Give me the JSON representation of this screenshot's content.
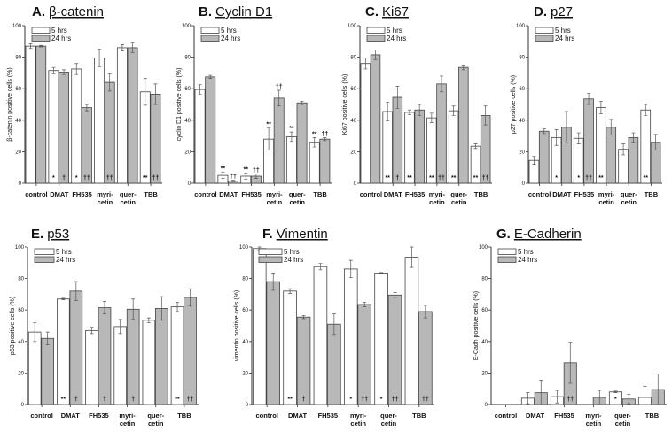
{
  "colors": {
    "five_hrs": "#ffffff",
    "twentyfour_hrs": "#b8b8b8",
    "axis": "#333333"
  },
  "chart_data": [
    {
      "panel": "A.",
      "title": "β-catenin",
      "type": "bar",
      "ylabel": "β-catenin positive cells (%)",
      "ylim": [
        0,
        100
      ],
      "yticks": [
        "0",
        "20",
        "40",
        "60",
        "80",
        "100"
      ],
      "categories": [
        "control",
        "DMAT",
        "FH535",
        "myri-\ncetin",
        "quer-\ncetin",
        "TBB"
      ],
      "series": [
        {
          "name": "5 hrs",
          "values": [
            87,
            71.5,
            72.5,
            79.5,
            86,
            58
          ],
          "errors": [
            1.5,
            2,
            3.5,
            5.5,
            2,
            8.5
          ],
          "marks": [
            "",
            "*",
            "*",
            "",
            "",
            "**"
          ]
        },
        {
          "name": "24 hrs",
          "values": [
            87,
            70.5,
            48,
            64,
            86,
            56.5
          ],
          "errors": [
            0.5,
            1.5,
            2,
            5.5,
            3,
            6.5
          ],
          "marks": [
            "",
            "†",
            "††",
            "††",
            "",
            "††"
          ]
        }
      ],
      "marks_position": "bottom"
    },
    {
      "panel": "B.",
      "title": "Cyclin D1",
      "type": "bar",
      "ylabel": "cyclin D1 positive cells (%)",
      "ylim": [
        0,
        100
      ],
      "yticks": [
        "0",
        "20",
        "40",
        "60",
        "80",
        "100"
      ],
      "categories": [
        "control",
        "DMAT",
        "FH535",
        "myri-\ncetin",
        "quer-\ncetin",
        "TBB"
      ],
      "series": [
        {
          "name": "5 hrs",
          "values": [
            59.5,
            5,
            4.5,
            28,
            29.5,
            26
          ],
          "errors": [
            3,
            2,
            2,
            7,
            3,
            3
          ],
          "marks": [
            "",
            "**",
            "**",
            "**",
            "**",
            "**"
          ]
        },
        {
          "name": "24 hrs",
          "values": [
            67.5,
            1.5,
            4.5,
            54,
            51,
            28
          ],
          "errors": [
            1,
            0.5,
            1.5,
            5,
            1,
            1
          ],
          "marks": [
            "",
            "††",
            "††",
            "††",
            "",
            "††"
          ]
        }
      ],
      "marks_position": "top"
    },
    {
      "panel": "C.",
      "title": "Ki67",
      "type": "bar",
      "ylabel": "Ki67 positive cells (%)",
      "ylim": [
        0,
        100
      ],
      "yticks": [
        "0",
        "20",
        "40",
        "60",
        "80",
        "100"
      ],
      "categories": [
        "control",
        "DMAT",
        "FH535",
        "myri-\ncetin",
        "quer-\ncetin",
        "TBB"
      ],
      "series": [
        {
          "name": "5 hrs",
          "values": [
            76,
            45.5,
            45,
            41.5,
            46,
            23.5
          ],
          "errors": [
            3.5,
            6,
            1.5,
            3,
            3,
            1.5
          ],
          "marks": [
            "",
            "**",
            "**",
            "**",
            "**",
            "**"
          ]
        },
        {
          "name": "24 hrs",
          "values": [
            81.5,
            54.5,
            46.5,
            63,
            73.5,
            43
          ],
          "errors": [
            3,
            7,
            3.5,
            5,
            1.5,
            6
          ],
          "marks": [
            "",
            "†",
            "",
            "††",
            "",
            "††"
          ]
        }
      ],
      "marks_position": "bottom"
    },
    {
      "panel": "D.",
      "title": "p27",
      "type": "bar",
      "ylabel": "p27 positive cells (%)",
      "ylim": [
        0,
        100
      ],
      "yticks": [
        "0",
        "20",
        "40",
        "60",
        "80",
        "100"
      ],
      "categories": [
        "control",
        "DMAT",
        "FH535",
        "myri-\ncetin",
        "quer-\ncetin",
        "TBB"
      ],
      "series": [
        {
          "name": "5 hrs",
          "values": [
            14.5,
            29,
            28.5,
            48,
            21.5,
            46.5
          ],
          "errors": [
            2.5,
            5,
            3.5,
            4,
            3.5,
            3.5
          ],
          "marks": [
            "",
            "*",
            "*",
            "**",
            "",
            "**"
          ]
        },
        {
          "name": "24 hrs",
          "values": [
            33,
            35.5,
            53.5,
            35.5,
            29,
            26
          ],
          "errors": [
            1.5,
            10,
            3.5,
            5,
            3,
            5
          ],
          "marks": [
            "",
            "",
            "††",
            "",
            "",
            ""
          ]
        }
      ],
      "marks_position": "bottom"
    },
    {
      "panel": "E.",
      "title": "p53",
      "type": "bar",
      "ylabel": "p53 positive cells (%)",
      "ylim": [
        0,
        100
      ],
      "yticks": [
        "0",
        "20",
        "40",
        "60",
        "80",
        "100"
      ],
      "categories": [
        "control",
        "DMAT",
        "FH535",
        "myri-\ncetin",
        "quer-\ncetin",
        "TBB"
      ],
      "series": [
        {
          "name": "5 hrs",
          "values": [
            46,
            67,
            47,
            49.5,
            53.5,
            62
          ],
          "errors": [
            6,
            0.5,
            2,
            4.5,
            1.5,
            3
          ],
          "marks": [
            "",
            "**",
            "",
            "",
            "",
            "**"
          ]
        },
        {
          "name": "24 hrs",
          "values": [
            42,
            72,
            61.5,
            60.5,
            61,
            68
          ],
          "errors": [
            4,
            6,
            4,
            6.5,
            7.5,
            5.5
          ],
          "marks": [
            "",
            "†",
            "†",
            "†",
            "",
            "††"
          ]
        }
      ],
      "marks_position": "bottom"
    },
    {
      "panel": "F.",
      "title": "Vimentin",
      "type": "bar",
      "ylabel": "vimentin positive cells (%)",
      "ylim": [
        0,
        100
      ],
      "yticks": [
        "0",
        "20",
        "40",
        "60",
        "80",
        "100"
      ],
      "categories": [
        "control",
        "DMAT",
        "FH535",
        "myri-\ncetin",
        "quer-\ncetin",
        "TBB"
      ],
      "series": [
        {
          "name": "5 hrs",
          "values": [
            99,
            72,
            87.5,
            86,
            83.5,
            93.5
          ],
          "errors": [
            1,
            1.5,
            2,
            5.5,
            0.3,
            6.5
          ],
          "marks": [
            "",
            "**",
            "",
            "*",
            "*",
            ""
          ]
        },
        {
          "name": "24 hrs",
          "values": [
            78,
            55.5,
            51,
            63.5,
            69.5,
            59
          ],
          "errors": [
            5.5,
            1,
            6.5,
            1.5,
            1.5,
            4
          ],
          "marks": [
            "",
            "†",
            "",
            "††",
            "††",
            "††"
          ]
        }
      ],
      "marks_position": "bottom"
    },
    {
      "panel": "G.",
      "title": "E-Cadherin",
      "type": "bar",
      "ylabel": "E-Cadh positive cells (%)",
      "ylim": [
        0,
        100
      ],
      "yticks": [
        "0",
        "20",
        "40",
        "60",
        "80",
        "100"
      ],
      "categories": [
        "control",
        "DMAT",
        "FH535",
        "myri-\ncetin",
        "quer-\ncetin",
        "TBB"
      ],
      "series": [
        {
          "name": "5 hrs",
          "values": [
            0,
            4,
            5,
            0,
            8,
            4.5
          ],
          "errors": [
            0,
            3.5,
            4,
            0,
            0.5,
            7
          ],
          "marks": [
            "",
            "",
            "",
            "",
            "*",
            ""
          ]
        },
        {
          "name": "24 hrs",
          "values": [
            0,
            7.5,
            26.5,
            4.5,
            3.5,
            9.5
          ],
          "errors": [
            0,
            8,
            13,
            4.5,
            3,
            10
          ],
          "marks": [
            "",
            "",
            "††",
            "",
            "",
            ""
          ]
        }
      ],
      "marks_position": "bottom"
    }
  ]
}
